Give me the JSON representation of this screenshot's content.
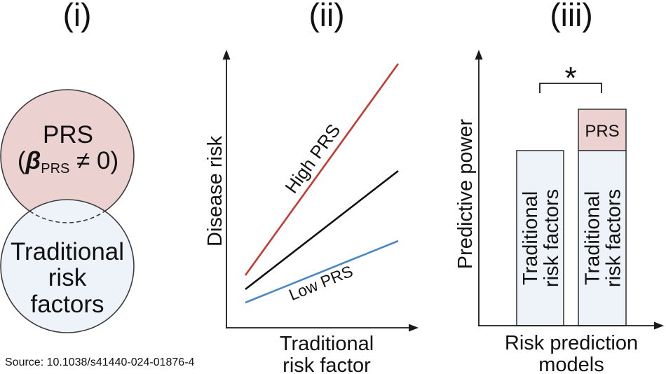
{
  "colors": {
    "prs_fill": "#ecd1d1",
    "traditional_fill": "#eef3f9",
    "high_prs_line": "#c13b33",
    "reference_line": "#111111",
    "low_prs_line": "#4a87c4"
  },
  "panel_i": {
    "title": "(i)",
    "prs_circle": {
      "label": "PRS",
      "beta": {
        "open": "(",
        "symbol": "β",
        "subscript": "PRS",
        "rest": " ≠ 0)"
      }
    },
    "traditional_circle": {
      "line1": "Traditional",
      "line2": "risk",
      "line3": "factors"
    }
  },
  "panel_ii": {
    "title": "(ii)",
    "y_axis_label": "Disease risk",
    "x_axis_label": {
      "line1": "Traditional",
      "line2": "risk factor"
    },
    "high_line_label": "High PRS",
    "low_line_label": "Low PRS"
  },
  "panel_iii": {
    "title": "(iii)",
    "y_axis_label": "Predictive power",
    "x_axis_label": {
      "line1": "Risk prediction",
      "line2": "models"
    },
    "bars": [
      {
        "label_line1": "Traditional",
        "label_line2": "risk factors"
      },
      {
        "label_line1": "Traditional",
        "label_line2": "risk factors",
        "top_segment_label": "PRS"
      }
    ],
    "significance": "*"
  },
  "source": "Source: 10.1038/s41440-024-01876-4"
}
